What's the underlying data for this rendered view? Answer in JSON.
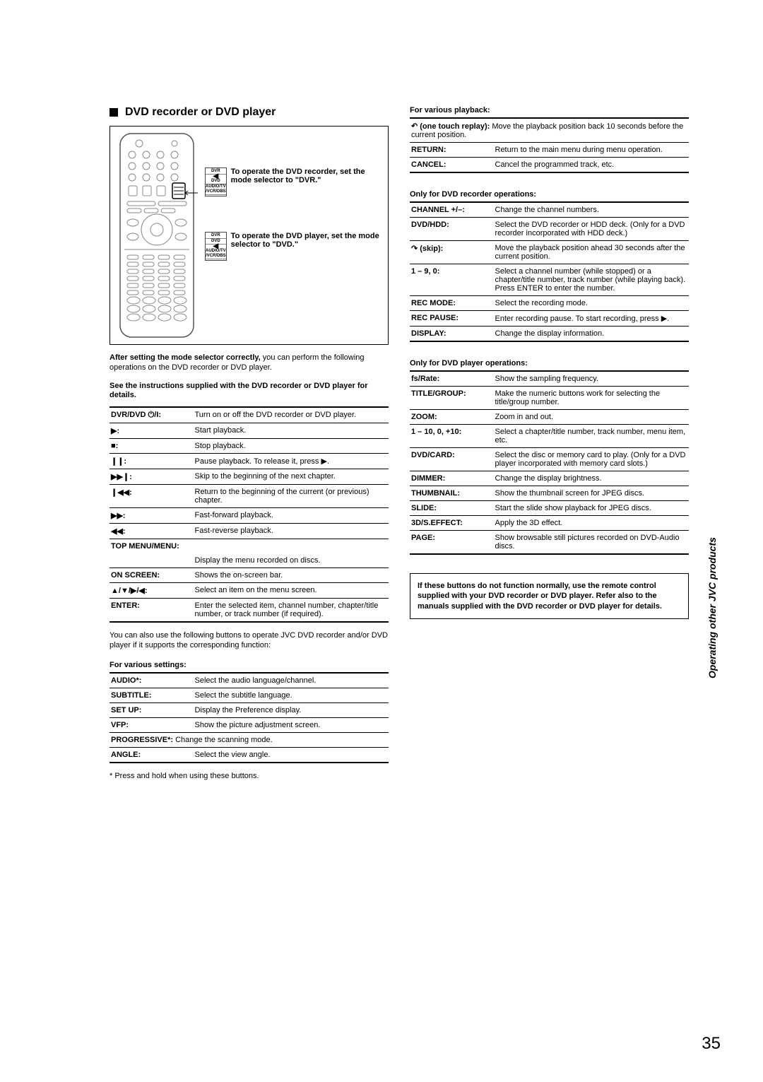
{
  "heading": "DVD recorder or DVD player",
  "remote_instr1": "To operate the DVD recorder, set the mode selector to \"DVR.\"",
  "remote_instr2": "To operate the DVD player, set the mode selector to \"DVD.\"",
  "mode_labels": [
    "DVR",
    "DVD",
    "AUDIO/TV /VCR/DBS"
  ],
  "after_setting_bold": "After setting the mode selector correctly,",
  "after_setting_rest": " you can perform the following operations on the DVD recorder or DVD player.",
  "see_instr": "See the instructions supplied with the DVD recorder or DVD player for details.",
  "basic_ops": [
    {
      "label": "DVR/DVD ⏻/I:",
      "desc": "Turn on or off the DVD recorder or DVD player."
    },
    {
      "label": "▶:",
      "desc": "Start playback."
    },
    {
      "label": "■:",
      "desc": "Stop playback."
    },
    {
      "label": "❙❙:",
      "desc": "Pause playback. To release it, press ▶."
    },
    {
      "label": "▶▶❙:",
      "desc": "Skip to the beginning of the next chapter."
    },
    {
      "label": "❙◀◀:",
      "desc": "Return to the beginning of the current (or previous) chapter."
    },
    {
      "label": "▶▶:",
      "desc": "Fast-forward playback."
    },
    {
      "label": "◀◀:",
      "desc": "Fast-reverse playback."
    }
  ],
  "menu_heading": "TOP MENU/MENU:",
  "menu_desc": "Display the menu recorded on discs.",
  "menu_ops": [
    {
      "label": "ON SCREEN:",
      "desc": "Shows the on-screen bar."
    },
    {
      "label": "▲/▼/▶/◀:",
      "desc": "Select an item on the menu screen."
    },
    {
      "label": "ENTER:",
      "desc": "Enter the selected item, channel number, chapter/title number, or track number (if required)."
    }
  ],
  "extra_para": "You can also use the following buttons to operate JVC DVD recorder and/or DVD player if it supports the corresponding function:",
  "various_settings_title": "For various settings:",
  "settings_ops": [
    {
      "label": "AUDIO*:",
      "desc": "Select the audio language/channel."
    },
    {
      "label": "SUBTITLE:",
      "desc": "Select the subtitle language."
    },
    {
      "label": "SET UP:",
      "desc": "Display the Preference display."
    },
    {
      "label": "VFP:",
      "desc": "Show the picture adjustment screen."
    },
    {
      "label": "PROGRESSIVE*:",
      "desc": "Change the scanning mode.",
      "inline": true
    },
    {
      "label": "ANGLE:",
      "desc": "Select the view angle."
    }
  ],
  "settings_footnote": "*  Press and hold when using these buttons.",
  "playback_title": "For various playback:",
  "playback_ops": [
    {
      "label": "↶ (one touch replay):",
      "desc": "Move the playback position back 10 seconds before the current position.",
      "inline": true
    },
    {
      "label": "RETURN:",
      "desc": "Return to the main menu during menu operation."
    },
    {
      "label": "CANCEL:",
      "desc": "Cancel the programmed track, etc."
    }
  ],
  "recorder_title": "Only for DVD recorder operations:",
  "recorder_ops": [
    {
      "label": "CHANNEL +/–:",
      "desc": "Change the channel numbers."
    },
    {
      "label": "DVD/HDD:",
      "desc": "Select the DVD recorder or HDD deck. (Only for a DVD recorder incorporated with HDD deck.)"
    },
    {
      "label": "↷ (skip):",
      "desc": "Move the playback position ahead 30 seconds after the current position."
    },
    {
      "label": "1 – 9, 0:",
      "desc": "Select a channel number (while stopped) or a chapter/title number, track number (while playing back). Press ENTER to enter the number."
    },
    {
      "label": "REC MODE:",
      "desc": "Select the recording mode."
    },
    {
      "label": "REC PAUSE:",
      "desc": "Enter recording pause. To start recording, press ▶."
    },
    {
      "label": "DISPLAY:",
      "desc": "Change the display information."
    }
  ],
  "player_title": "Only for DVD player operations:",
  "player_ops": [
    {
      "label": "fs/Rate:",
      "desc": "Show the sampling frequency."
    },
    {
      "label": "TITLE/GROUP:",
      "desc": "Make the numeric buttons work for selecting the title/group number."
    },
    {
      "label": "ZOOM:",
      "desc": "Zoom in and out."
    },
    {
      "label": "1 – 10, 0, +10:",
      "desc": "Select a chapter/title number, track number, menu item, etc."
    },
    {
      "label": "DVD/CARD:",
      "desc": "Select the disc or memory card to play. (Only for a DVD player incorporated with memory card slots.)"
    },
    {
      "label": "DIMMER:",
      "desc": "Change the display brightness."
    },
    {
      "label": "THUMBNAIL:",
      "desc": "Show the thumbnail screen for JPEG discs."
    },
    {
      "label": "SLIDE:",
      "desc": "Start the slide show playback for JPEG discs."
    },
    {
      "label": "3D/S.EFFECT:",
      "desc": "Apply the 3D effect."
    },
    {
      "label": "PAGE:",
      "desc": "Show browsable still pictures recorded on DVD-Audio discs."
    }
  ],
  "note_box": "If these buttons do not function normally, use the remote control supplied with your DVD recorder or DVD player. Refer also to the manuals supplied with the DVD recorder or DVD player for details.",
  "side_tab": "Operating other JVC products",
  "page_num": "35"
}
